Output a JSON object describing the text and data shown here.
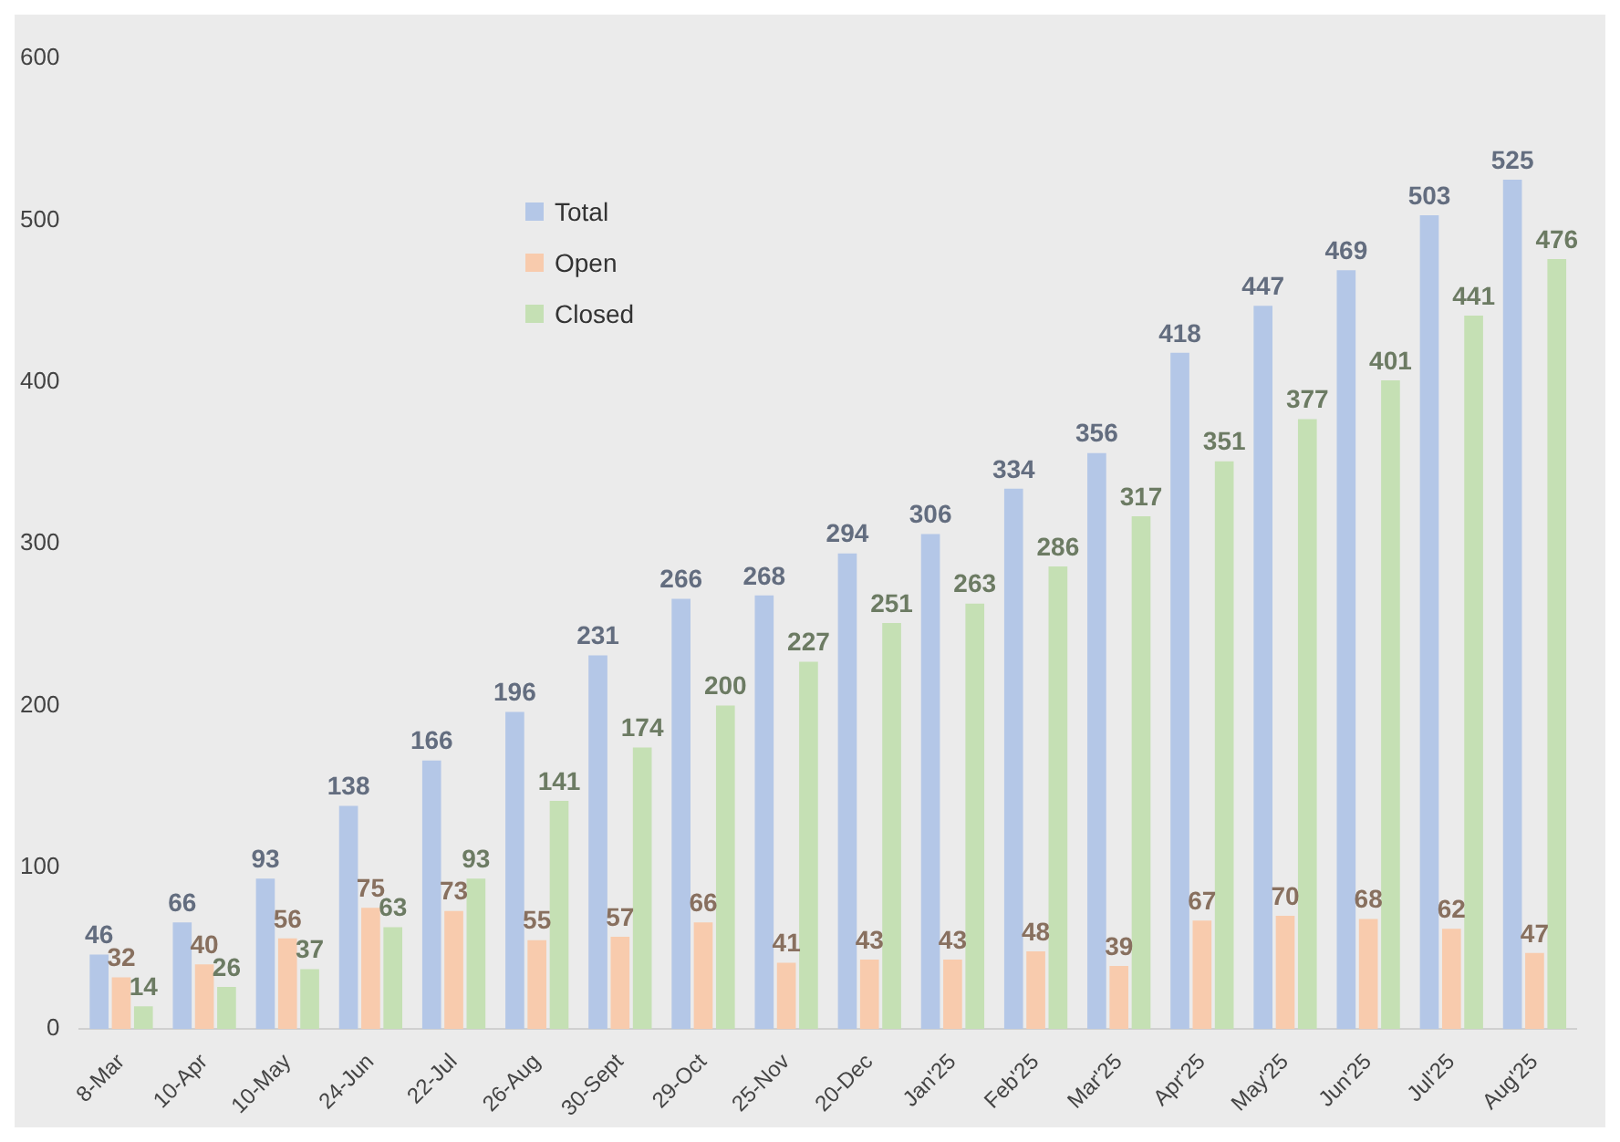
{
  "chart_data": {
    "type": "bar",
    "categories": [
      "8-Mar",
      "10-Apr",
      "10-May",
      "24-Jun",
      "22-Jul",
      "26-Aug",
      "30-Sept",
      "29-Oct",
      "25-Nov",
      "20-Dec",
      "Jan'25",
      "Feb'25",
      "Mar'25",
      "Apr'25",
      "May'25",
      "Jun'25",
      "Jul'25",
      "Aug'25"
    ],
    "series": [
      {
        "name": "Total",
        "color": "#b4c7e7",
        "values": [
          46,
          66,
          93,
          138,
          166,
          196,
          231,
          266,
          268,
          294,
          306,
          334,
          356,
          418,
          447,
          469,
          503,
          525
        ]
      },
      {
        "name": "Open",
        "color": "#f8cbad",
        "values": [
          32,
          40,
          56,
          75,
          73,
          55,
          57,
          66,
          41,
          43,
          43,
          48,
          39,
          67,
          70,
          68,
          62,
          47
        ]
      },
      {
        "name": "Closed",
        "color": "#c5e0b4",
        "values": [
          14,
          26,
          37,
          63,
          93,
          141,
          174,
          200,
          227,
          251,
          263,
          286,
          317,
          351,
          377,
          401,
          441,
          476
        ]
      }
    ],
    "ylim": [
      0,
      600
    ],
    "yticks": [
      0,
      100,
      200,
      300,
      400,
      500,
      600
    ],
    "grid": false,
    "legend": "top left",
    "data_labels": true
  }
}
